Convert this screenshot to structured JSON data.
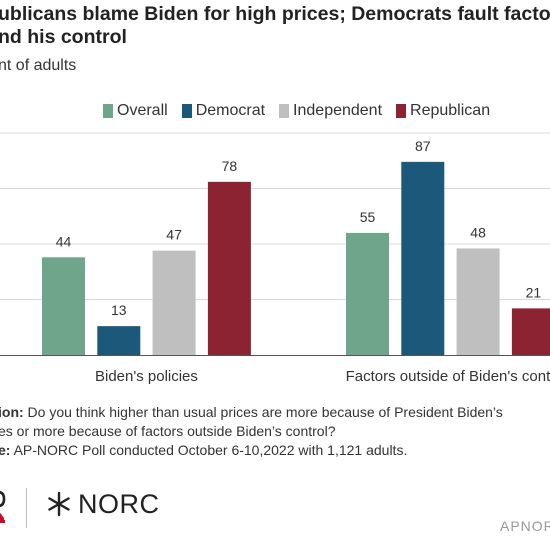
{
  "title": {
    "line1": "ublicans blame Biden for high prices; Democrats fault factors",
    "line2": "nd his control"
  },
  "subtitle": "nt of adults",
  "colors": {
    "Overall": "#6fa58a",
    "Democrat": "#1b5879",
    "Independent": "#bfbfbf",
    "Republican": "#8b2332",
    "grid": "#d9d9d9",
    "axis": "#555555"
  },
  "chart_data": {
    "type": "bar",
    "categories": [
      "Biden's policies",
      "Factors outside of Biden's contr"
    ],
    "series": [
      {
        "name": "Overall",
        "values": [
          44,
          55
        ]
      },
      {
        "name": "Democrat",
        "values": [
          13,
          87
        ]
      },
      {
        "name": "Independent",
        "values": [
          47,
          48
        ]
      },
      {
        "name": "Republican",
        "values": [
          78,
          21
        ]
      }
    ],
    "ylim": [
      0,
      100
    ],
    "grid": true,
    "legend": "top",
    "value_labels": true
  },
  "notes": {
    "question_label": "ion:",
    "question_text1": " Do you think higher than usual prices are more because of President Biden’s",
    "question_text2": "es or more because of factors outside Biden’s control?",
    "source_label": "e:",
    "source_text": " AP-NORC Poll conducted October 6-10,2022 with 1,121 adults."
  },
  "logos": {
    "left_icon": "ap-logo-partial",
    "norc_icon": "norc-star-icon",
    "norc_text": "NORC"
  },
  "brand": "APNOR"
}
